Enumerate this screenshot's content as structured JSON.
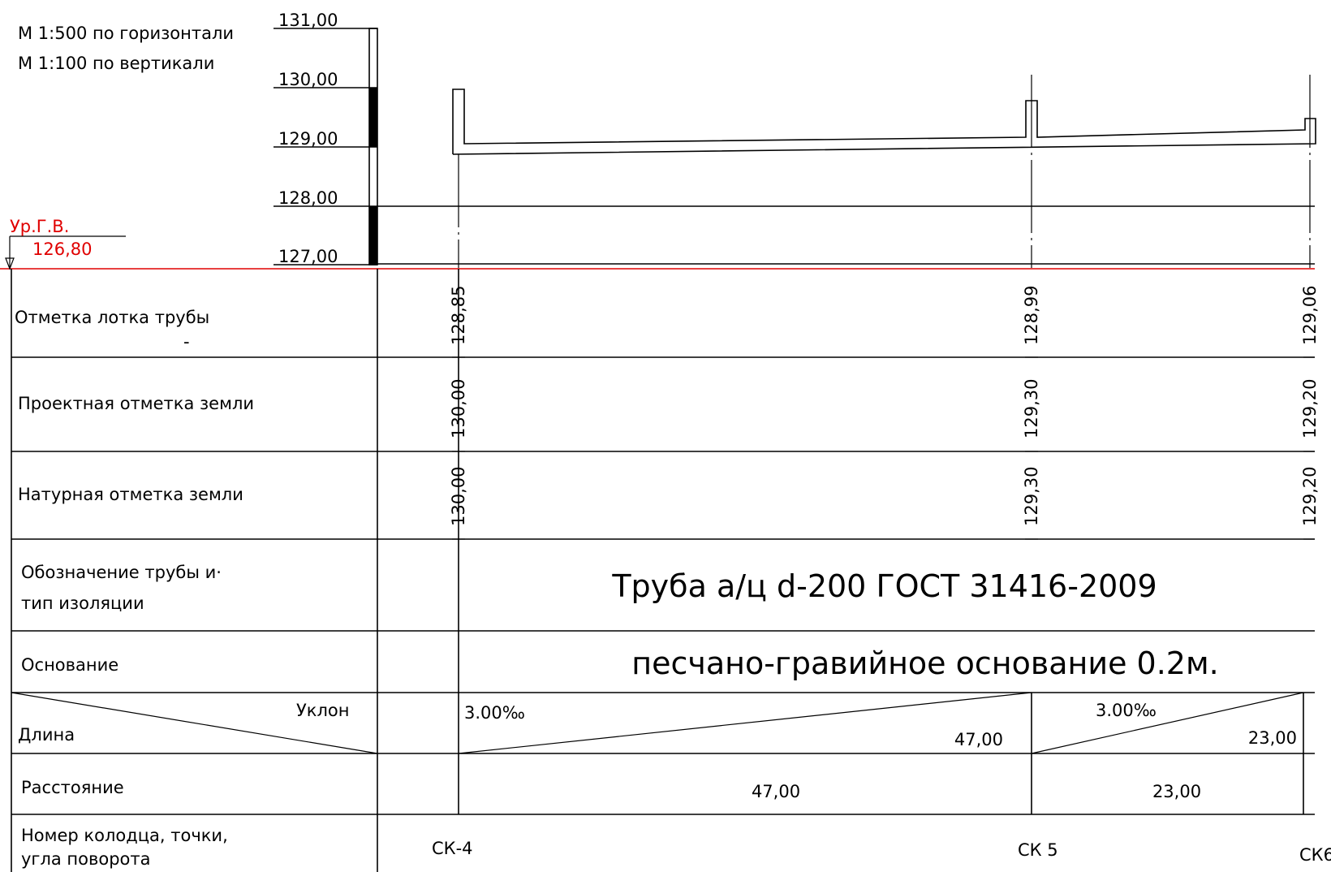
{
  "scale": {
    "horizontal": "М 1:500  по горизонтали",
    "vertical": "М 1:100  по вертикали"
  },
  "groundwater": {
    "label": "Ур.Г.В.",
    "value": "126,80"
  },
  "ruler_labels": [
    "131,00",
    "130,00",
    "129,00",
    "128,00",
    "127,00"
  ],
  "rows": {
    "tray": "Отметка лотка трубы",
    "tray_dash": "-",
    "design": "Проектная  отметка земли",
    "natural": "Натурная отметка земли",
    "pipe_line1": "Обозначение трубы и·",
    "pipe_line2": "тип изоляции",
    "base": "Основание",
    "slope": "Уклон",
    "length": "Длина",
    "distance": "Расстояние",
    "well_line1": "Номер колодца, точки,",
    "well_line2": "угла поворота"
  },
  "pipe_text": "Труба а/ц d-200 ГОСТ 31416-2009",
  "base_text": "песчано-гравийное основание 0.2м.",
  "stations": [
    {
      "tray": "128,85",
      "design": "130,00",
      "natural": "130,00",
      "well": "СК-4"
    },
    {
      "tray": "128,99",
      "design": "129,30",
      "natural": "129,30",
      "well": "СК 5"
    },
    {
      "tray": "129,06",
      "design": "129,20",
      "natural": "129,20",
      "well": "СК6"
    }
  ],
  "segments": [
    {
      "slope": "3.00‰",
      "length": "47,00",
      "distance": "47,00"
    },
    {
      "slope": "3.00‰",
      "length": "23,00",
      "distance": "23,00"
    }
  ]
}
